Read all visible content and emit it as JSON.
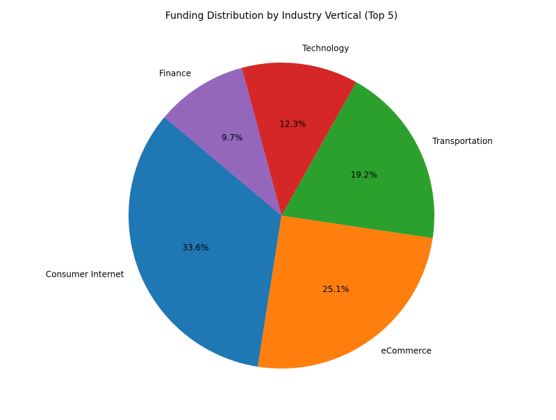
{
  "chart_data": {
    "type": "pie",
    "title": "Funding Distribution by Industry Vertical (Top 5)",
    "slices": [
      {
        "label": "Consumer Internet",
        "value": 33.6,
        "pct_label": "33.6%",
        "color": "#1f77b4"
      },
      {
        "label": "eCommerce",
        "value": 25.1,
        "pct_label": "25.1%",
        "color": "#ff7f0e"
      },
      {
        "label": "Transportation",
        "value": 19.2,
        "pct_label": "19.2%",
        "color": "#2ca02c"
      },
      {
        "label": "Technology",
        "value": 12.3,
        "pct_label": "12.3%",
        "color": "#d62728"
      },
      {
        "label": "Finance",
        "value": 9.7,
        "pct_label": "9.7%",
        "color": "#9467bd"
      }
    ],
    "start_angle_deg": 140,
    "direction": "counterclockwise"
  }
}
